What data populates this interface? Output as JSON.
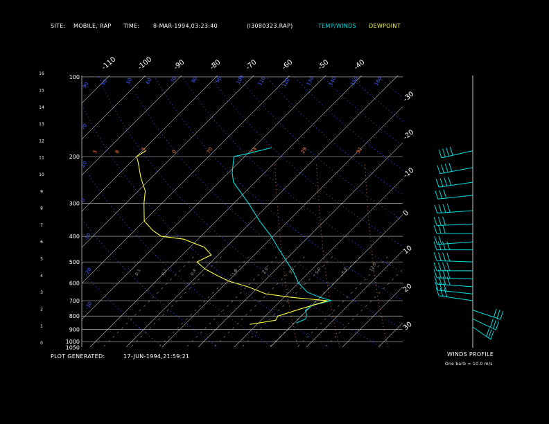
{
  "header": {
    "site_label": "SITE:",
    "site_value": "MOBILE, RAP",
    "time_label": "TIME:",
    "time_value": "8-MAR-1994,03:23:40",
    "file": "(I3080323.RAP)",
    "legend_temp": "TEMP/WINDS",
    "legend_dew": "DEWPOINT"
  },
  "footer": {
    "generated_label": "PLOT GENERATED:",
    "generated_value": "17-JUN-1994,21:59:21",
    "winds_title": "WINDS PROFILE",
    "barb_note": "One barb = 10.0 m/s"
  },
  "colors": {
    "temp": "#00e0e0",
    "dew": "#ffff40",
    "grid": "#c8c8c8",
    "skew": "#c8c8c8",
    "dry_adiabat": "#4060ff",
    "mixing_ratio": "#ff8040",
    "moist_adiabat": "#a0a0a0"
  },
  "chart_data": {
    "type": "line",
    "title": "",
    "pressure_levels": [
      "100",
      "200",
      "300",
      "400",
      "500",
      "600",
      "700",
      "800",
      "900",
      "1000",
      "1050"
    ],
    "height_km_ticks": [
      "0",
      "1",
      "2",
      "3",
      "4",
      "5",
      "6",
      "7",
      "8",
      "9",
      "10",
      "11",
      "12",
      "13",
      "14",
      "15",
      "16"
    ],
    "temp_ticks_top": [
      "-110",
      "-100",
      "-90",
      "-80",
      "-70",
      "-60",
      "-50",
      "-40"
    ],
    "temp_ticks_right": [
      "-30",
      "-20",
      "-10",
      "0",
      "10",
      "20",
      "30"
    ],
    "dry_adiabat_labels": [
      "90",
      "50",
      "50",
      "60",
      "70",
      "80",
      "90",
      "100",
      "110",
      "120",
      "130",
      "140",
      "150",
      "160",
      "70",
      "10",
      "0",
      "-10",
      "-20",
      "-30"
    ],
    "mixing_ratio_labels": [
      "5",
      "8",
      "5",
      "0",
      "70",
      "74",
      "29",
      "32"
    ],
    "moist_labels": [
      "0.1",
      "0.2",
      "0.4",
      "1.0",
      "2.0",
      "3.0",
      "5.0",
      "8.0",
      "12.0"
    ],
    "series": [
      {
        "name": "TEMP/WINDS",
        "points": [
          {
            "p": 850,
            "t": 10.5
          },
          {
            "p": 820,
            "t": 12.0
          },
          {
            "p": 790,
            "t": 11.0
          },
          {
            "p": 760,
            "t": 9.5
          },
          {
            "p": 730,
            "t": 10.0
          },
          {
            "p": 700,
            "t": 14.0
          },
          {
            "p": 680,
            "t": 10.0
          },
          {
            "p": 650,
            "t": 5.0
          },
          {
            "p": 600,
            "t": 0.0
          },
          {
            "p": 550,
            "t": -4.0
          },
          {
            "p": 500,
            "t": -9.0
          },
          {
            "p": 450,
            "t": -14.5
          },
          {
            "p": 400,
            "t": -20.5
          },
          {
            "p": 350,
            "t": -28.0
          },
          {
            "p": 300,
            "t": -36.0
          },
          {
            "p": 250,
            "t": -46.0
          },
          {
            "p": 230,
            "t": -49.0
          },
          {
            "p": 200,
            "t": -53.0
          },
          {
            "p": 195,
            "t": -50.0
          },
          {
            "p": 185,
            "t": -45.0
          }
        ]
      },
      {
        "name": "DEWPOINT",
        "points": [
          {
            "p": 860,
            "t": -2.0
          },
          {
            "p": 830,
            "t": 4.0
          },
          {
            "p": 800,
            "t": 3.5
          },
          {
            "p": 760,
            "t": 7.0
          },
          {
            "p": 720,
            "t": 11.0
          },
          {
            "p": 700,
            "t": 13.0
          },
          {
            "p": 680,
            "t": 2.0
          },
          {
            "p": 660,
            "t": -6.0
          },
          {
            "p": 620,
            "t": -13.0
          },
          {
            "p": 590,
            "t": -20.0
          },
          {
            "p": 560,
            "t": -25.0
          },
          {
            "p": 530,
            "t": -30.0
          },
          {
            "p": 500,
            "t": -34.0
          },
          {
            "p": 470,
            "t": -32.0
          },
          {
            "p": 440,
            "t": -36.0
          },
          {
            "p": 410,
            "t": -44.0
          },
          {
            "p": 400,
            "t": -51.0
          },
          {
            "p": 380,
            "t": -55.0
          },
          {
            "p": 350,
            "t": -60.0
          },
          {
            "p": 300,
            "t": -65.0
          },
          {
            "p": 270,
            "t": -68.0
          },
          {
            "p": 240,
            "t": -73.0
          },
          {
            "p": 210,
            "t": -78.0
          },
          {
            "p": 200,
            "t": -80.0
          },
          {
            "p": 190,
            "t": -79.0
          }
        ]
      }
    ],
    "x_range": [
      -110,
      40
    ],
    "y_range": [
      1050,
      100
    ],
    "y_scale": "log",
    "grid": true
  },
  "winds": {
    "levels": [
      {
        "p": 190,
        "dir": 300,
        "spd": 35
      },
      {
        "p": 220,
        "dir": 295,
        "spd": 40
      },
      {
        "p": 250,
        "dir": 290,
        "spd": 40
      },
      {
        "p": 280,
        "dir": 285,
        "spd": 30
      },
      {
        "p": 320,
        "dir": 280,
        "spd": 35
      },
      {
        "p": 360,
        "dir": 275,
        "spd": 30
      },
      {
        "p": 390,
        "dir": 270,
        "spd": 25
      },
      {
        "p": 420,
        "dir": 280,
        "spd": 20
      },
      {
        "p": 450,
        "dir": 270,
        "spd": 40
      },
      {
        "p": 500,
        "dir": 265,
        "spd": 40
      },
      {
        "p": 540,
        "dir": 270,
        "spd": 40
      },
      {
        "p": 580,
        "dir": 265,
        "spd": 40
      },
      {
        "p": 620,
        "dir": 260,
        "spd": 35
      },
      {
        "p": 660,
        "dir": 255,
        "spd": 30
      },
      {
        "p": 700,
        "dir": 250,
        "spd": 30
      },
      {
        "p": 760,
        "dir": 130,
        "spd": 25
      },
      {
        "p": 820,
        "dir": 140,
        "spd": 25
      },
      {
        "p": 880,
        "dir": 150,
        "spd": 25
      }
    ]
  }
}
